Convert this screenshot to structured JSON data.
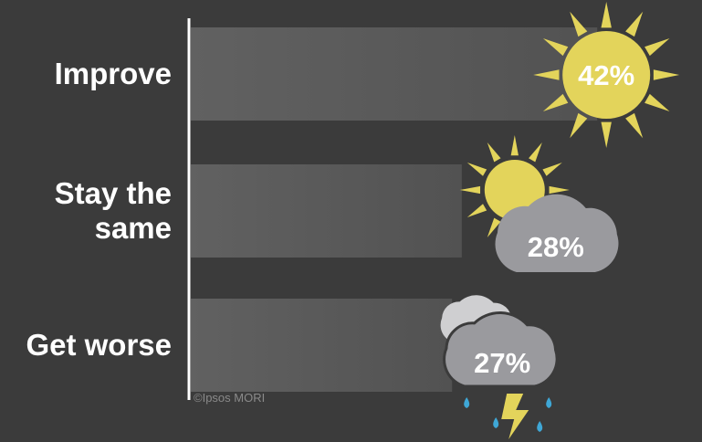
{
  "chart_data": {
    "type": "bar",
    "orientation": "horizontal",
    "categories": [
      "Improve",
      "Stay the same",
      "Get worse"
    ],
    "category_lines": [
      [
        "Improve"
      ],
      [
        "Stay the",
        "same"
      ],
      [
        "Get worse"
      ]
    ],
    "values": [
      42,
      28,
      27
    ],
    "value_labels": [
      "42%",
      "28%",
      "27%"
    ],
    "icons": [
      "sun-icon",
      "sun-behind-cloud-icon",
      "storm-cloud-icon"
    ],
    "grid": false,
    "legend": "none"
  },
  "credit": "©Ipsos MORI",
  "colors": {
    "background": "#3b3b3b",
    "bar": "#5a5a5a",
    "sun": "#e3d45b",
    "cloud": "#9a9a9e",
    "light_cloud": "#cfcfd1",
    "rain": "#3fa7d6",
    "bolt": "#e3d45b"
  }
}
